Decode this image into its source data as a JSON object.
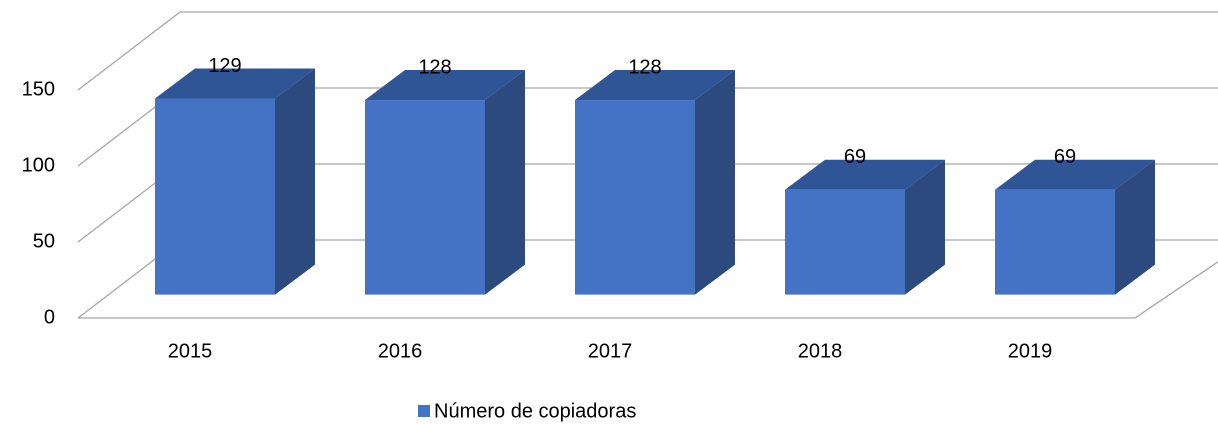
{
  "chart_data": {
    "type": "bar3d",
    "categories": [
      "2015",
      "2016",
      "2017",
      "2018",
      "2019"
    ],
    "series": [
      {
        "name": "Número de copiadoras",
        "color": "#4472c4",
        "values": [
          129,
          128,
          128,
          69,
          69
        ]
      }
    ],
    "ylim": [
      0,
      150
    ],
    "yticks": [
      0,
      50,
      100,
      150
    ],
    "grid": true,
    "legend": "bottom"
  }
}
